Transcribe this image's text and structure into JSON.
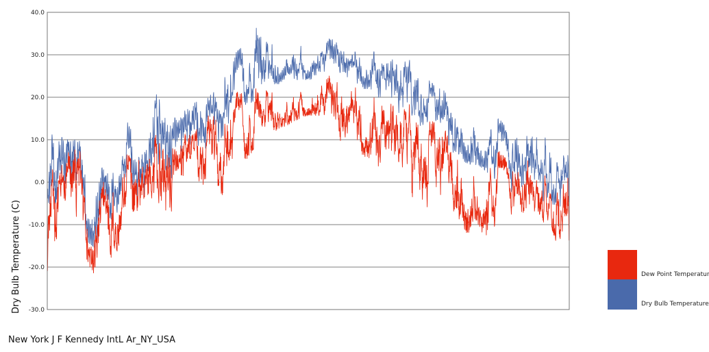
{
  "caption": "New York J F Kennedy IntL Ar_NY_USA",
  "colors": {
    "dew": "#e8280f",
    "dry": "#4a6aab",
    "grid": "#555555",
    "frame": "#777777"
  },
  "chart_data": {
    "type": "line",
    "ylabel": "Dry Bulb Temperature (C)",
    "ylim": [
      -30,
      40
    ],
    "yticks": [
      "-30.0",
      "-20.0",
      "-10.0",
      "0.0",
      "10.0",
      "20.0",
      "30.0",
      "40.0"
    ],
    "grid": true,
    "legend_position": "bottom-right",
    "x_unit": "day of year",
    "series": [
      {
        "name": "Dry Bulb Temperature",
        "color": "#4a6aab",
        "x": [
          1,
          8,
          15,
          22,
          29,
          36,
          43,
          50,
          57,
          64,
          71,
          78,
          85,
          92,
          99,
          106,
          113,
          120,
          127,
          134,
          141,
          148,
          155,
          162,
          169,
          176,
          183,
          190,
          197,
          204,
          211,
          218,
          225,
          232,
          239,
          246,
          253,
          260,
          267,
          274,
          281,
          288,
          295,
          302,
          309,
          316,
          323,
          330,
          337,
          344,
          351,
          358,
          365
        ],
        "max": [
          12,
          11,
          10,
          12,
          6,
          2,
          5,
          7,
          14,
          10,
          13,
          23,
          18,
          14,
          18,
          19,
          20,
          22,
          29,
          31,
          33,
          37,
          33,
          34,
          33,
          33,
          33,
          31,
          34,
          34,
          32,
          30,
          33,
          31,
          30,
          28,
          29,
          26,
          24,
          22,
          22,
          20,
          18,
          16,
          14,
          15,
          12,
          11,
          12,
          10,
          11,
          9,
          7
        ],
        "min": [
          -9,
          -10,
          -8,
          -7,
          -14,
          -16,
          -10,
          -7,
          -5,
          -6,
          -3,
          2,
          -2,
          -2,
          4,
          6,
          8,
          9,
          13,
          16,
          19,
          18,
          22,
          23,
          25,
          24,
          24,
          25,
          26,
          25,
          24,
          22,
          22,
          20,
          17,
          16,
          15,
          12,
          13,
          10,
          7,
          6,
          4,
          4,
          2,
          0,
          -2,
          -3,
          -5,
          -4,
          -5,
          -6,
          -8
        ]
      },
      {
        "name": "Dew Point Temperature",
        "color": "#e8280f",
        "x": [
          1,
          8,
          15,
          22,
          29,
          36,
          43,
          50,
          57,
          64,
          71,
          78,
          85,
          92,
          99,
          106,
          113,
          120,
          127,
          134,
          141,
          148,
          155,
          162,
          169,
          176,
          183,
          190,
          197,
          204,
          211,
          218,
          225,
          232,
          239,
          246,
          253,
          260,
          267,
          274,
          281,
          288,
          295,
          302,
          309,
          316,
          323,
          330,
          337,
          344,
          351,
          358,
          365
        ],
        "max": [
          10,
          4,
          8,
          12,
          4,
          0,
          3,
          3,
          8,
          8,
          10,
          14,
          12,
          8,
          14,
          15,
          17,
          18,
          22,
          22,
          24,
          23,
          24,
          25,
          23,
          24,
          25,
          23,
          26,
          25,
          25,
          23,
          23,
          22,
          20,
          20,
          20,
          18,
          15,
          16,
          16,
          14,
          12,
          10,
          9,
          8,
          6,
          5,
          6,
          3,
          4,
          2,
          2
        ],
        "min": [
          -23,
          -18,
          -18,
          -15,
          -20,
          -24,
          -20,
          -18,
          -15,
          -12,
          -8,
          -14,
          -10,
          -15,
          -5,
          -5,
          -3,
          -6,
          -1,
          2,
          5,
          8,
          10,
          12,
          13,
          14,
          15,
          14,
          13,
          6,
          8,
          5,
          5,
          2,
          0,
          -2,
          -5,
          -5,
          -8,
          -10,
          -5,
          -12,
          -14,
          -12,
          -14,
          -10,
          -8,
          -10,
          -15,
          -12,
          -10,
          -17,
          -20
        ]
      }
    ]
  }
}
